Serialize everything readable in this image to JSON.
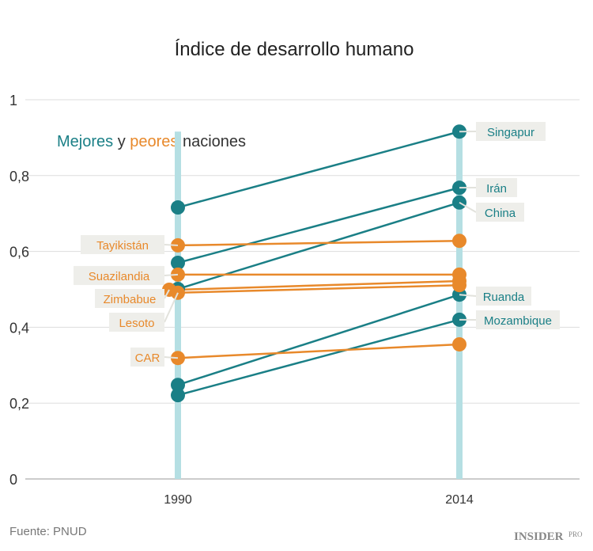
{
  "chart_data": {
    "type": "slope",
    "title": "Índice de desarrollo humano",
    "subtitle_parts": [
      {
        "text": "Mejores",
        "color": "#1a7f86"
      },
      {
        "text": " y ",
        "color": "#333333"
      },
      {
        "text": "peores",
        "color": "#e8892b"
      },
      {
        "text": " naciones",
        "color": "#333333"
      }
    ],
    "categories": [
      "1990",
      "2014"
    ],
    "ylim": [
      0,
      1
    ],
    "yticks": [
      {
        "v": 0,
        "label": "0"
      },
      {
        "v": 0.2,
        "label": "0,2"
      },
      {
        "v": 0.4,
        "label": "0,4"
      },
      {
        "v": 0.6,
        "label": "0,6"
      },
      {
        "v": 0.8,
        "label": "0,8"
      },
      {
        "v": 1,
        "label": "1"
      }
    ],
    "grid": true,
    "colors": {
      "mejores": "#1a7f86",
      "peores": "#e8892b",
      "bar": "#b5dfe3",
      "label_bg": "#eeeeea"
    },
    "series": [
      {
        "name": "Singapur",
        "group": "mejores",
        "values": [
          0.716,
          0.916
        ]
      },
      {
        "name": "Irán",
        "group": "mejores",
        "values": [
          0.57,
          0.768
        ]
      },
      {
        "name": "China",
        "group": "mejores",
        "values": [
          0.501,
          0.729
        ]
      },
      {
        "name": "Ruanda",
        "group": "mejores",
        "values": [
          0.248,
          0.486
        ]
      },
      {
        "name": "Mozambique",
        "group": "mejores",
        "values": [
          0.221,
          0.42
        ]
      },
      {
        "name": "Tayikistán",
        "group": "peores",
        "values": [
          0.616,
          0.628
        ]
      },
      {
        "name": "Suazilandia",
        "group": "peores",
        "values": [
          0.539,
          0.539
        ]
      },
      {
        "name": "Zimbabue",
        "group": "peores",
        "values": [
          0.499,
          0.522
        ]
      },
      {
        "name": "Lesoto",
        "group": "peores",
        "values": [
          0.491,
          0.511
        ]
      },
      {
        "name": "CAR",
        "group": "peores",
        "values": [
          0.319,
          0.355
        ]
      }
    ],
    "source": "Fuente: PNUD"
  },
  "brand": {
    "name": "INSIDER",
    "suffix": "PRO"
  }
}
